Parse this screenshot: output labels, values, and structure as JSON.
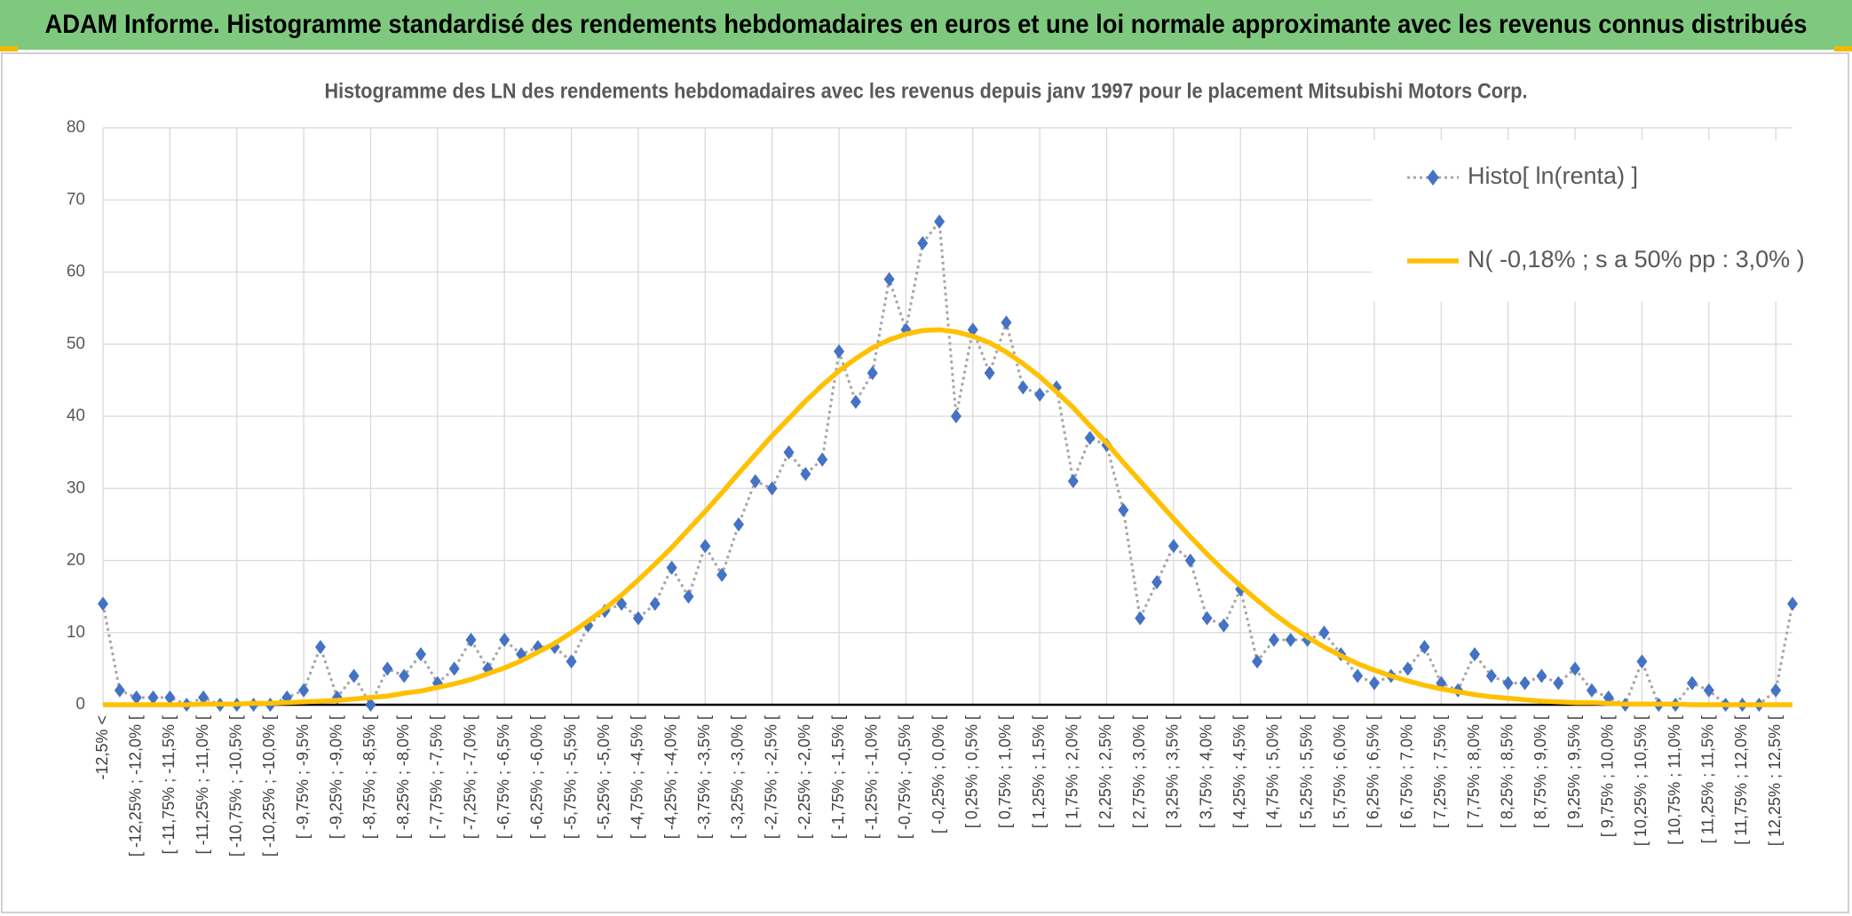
{
  "header": {
    "title": "ADAM Informe. Histogramme standardisé des rendements hebdomadaires en euros et une loi normale approximante avec les revenus connus distribués"
  },
  "chart_data": {
    "type": "line",
    "title": "Histogramme des LN des rendements hebdomadaires avec les revenus depuis janv 1997 pour le placement Mitsubishi Motors Corp.",
    "categories": [
      "-12,5% <",
      null,
      "[ -12,25% ; -12,0% [",
      null,
      "[ -11,75% ; -11,5% [",
      null,
      "[ -11,25% ; -11,0% [",
      null,
      "[ -10,75% ; -10,5% [",
      null,
      "[ -10,25% ; -10,0% [",
      null,
      "[ -9,75% ; -9,5% [",
      null,
      "[ -9,25% ; -9,0% [",
      null,
      "[ -8,75% ; -8,5% [",
      null,
      "[ -8,25% ; -8,0% [",
      null,
      "[ -7,75% ; -7,5% [",
      null,
      "[ -7,25% ; -7,0% [",
      null,
      "[ -6,75% ; -6,5% [",
      null,
      "[ -6,25% ; -6,0% [",
      null,
      "[ -5,75% ; -5,5% [",
      null,
      "[ -5,25% ; -5,0% [",
      null,
      "[ -4,75% ; -4,5% [",
      null,
      "[ -4,25% ; -4,0% [",
      null,
      "[ -3,75% ; -3,5% [",
      null,
      "[ -3,25% ; -3,0% [",
      null,
      "[ -2,75% ; -2,5% [",
      null,
      "[ -2,25% ; -2,0% [",
      null,
      "[ -1,75% ; -1,5% [",
      null,
      "[ -1,25% ; -1,0% [",
      null,
      "[ -0,75% ; -0,5% [",
      null,
      "[ -0,25% ; 0,0% [",
      null,
      "[ 0,25% ; 0,5% [",
      null,
      "[ 0,75% ; 1,0% [",
      null,
      "[ 1,25% ; 1,5% [",
      null,
      "[ 1,75% ; 2,0% [",
      null,
      "[ 2,25% ; 2,5% [",
      null,
      "[ 2,75% ; 3,0% [",
      null,
      "[ 3,25% ; 3,5% [",
      null,
      "[ 3,75% ; 4,0% [",
      null,
      "[ 4,25% ; 4,5% [",
      null,
      "[ 4,75% ; 5,0% [",
      null,
      "[ 5,25% ; 5,5% [",
      null,
      "[ 5,75% ; 6,0% [",
      null,
      "[ 6,25% ; 6,5% [",
      null,
      "[ 6,75% ; 7,0% [",
      null,
      "[ 7,25% ; 7,5% [",
      null,
      "[ 7,75% ; 8,0% [",
      null,
      "[ 8,25% ; 8,5% [",
      null,
      "[ 8,75% ; 9,0% [",
      null,
      "[ 9,25% ; 9,5% [",
      null,
      "[ 9,75% ; 10,0% [",
      null,
      "[ 10,25% ; 10,5% [",
      null,
      "[ 10,75% ; 11,0% [",
      null,
      "[ 11,25% ; 11,5% [",
      null,
      "[ 11,75% ; 12,0% [",
      null,
      "[ 12,25% ; 12,5% [",
      null
    ],
    "series": [
      {
        "name": "Histo[ ln(renta) ]",
        "color": "#4472c4",
        "line_color": "#a5a5a5",
        "line_style": "dotted",
        "marker": "diamond",
        "values": [
          14,
          2,
          1,
          1,
          1,
          0,
          1,
          0,
          0,
          0,
          0,
          1,
          2,
          8,
          1,
          4,
          0,
          5,
          4,
          7,
          3,
          5,
          9,
          5,
          9,
          7,
          8,
          8,
          6,
          11,
          13,
          14,
          12,
          14,
          19,
          15,
          22,
          18,
          25,
          31,
          30,
          35,
          32,
          34,
          49,
          42,
          46,
          59,
          52,
          64,
          67,
          40,
          52,
          46,
          53,
          44,
          43,
          44,
          31,
          37,
          36,
          27,
          12,
          17,
          22,
          20,
          12,
          11,
          16,
          6,
          9,
          9,
          9,
          10,
          7,
          4,
          3,
          4,
          5,
          8,
          3,
          2,
          7,
          4,
          3,
          3,
          4,
          3,
          5,
          2,
          1,
          0,
          6,
          0,
          0,
          3,
          2,
          0,
          0,
          0,
          2,
          14
        ]
      },
      {
        "name": "N( -0,18% ; s a 50% pp : 3,0% )",
        "color": "#ffc000",
        "line_style": "solid",
        "marker": "none",
        "values": [
          0,
          0,
          0,
          0,
          0,
          0,
          0.1,
          0.1,
          0.1,
          0.2,
          0.2,
          0.3,
          0.4,
          0.5,
          0.6,
          0.8,
          1.0,
          1.2,
          1.6,
          1.9,
          2.4,
          2.9,
          3.5,
          4.3,
          5.1,
          6.1,
          7.3,
          8.5,
          10.0,
          11.6,
          13.3,
          15.2,
          17.3,
          19.5,
          21.8,
          24.3,
          26.8,
          29.4,
          32.1,
          34.7,
          37.3,
          39.7,
          42.1,
          44.3,
          46.3,
          48.0,
          49.5,
          50.6,
          51.4,
          51.9,
          52.0,
          51.7,
          51.1,
          50.2,
          48.9,
          47.3,
          45.5,
          43.4,
          41.2,
          38.7,
          36.3,
          33.6,
          31.0,
          28.4,
          25.8,
          23.3,
          20.9,
          18.6,
          16.5,
          14.5,
          12.6,
          10.9,
          9.4,
          8.0,
          6.8,
          5.7,
          4.8,
          4.0,
          3.3,
          2.7,
          2.2,
          1.8,
          1.4,
          1.1,
          0.9,
          0.7,
          0.5,
          0.4,
          0.3,
          0.3,
          0.2,
          0.1,
          0.1,
          0.1,
          0.1,
          0,
          0,
          0,
          0,
          0,
          0,
          0
        ]
      }
    ],
    "ylim": [
      0,
      80
    ],
    "yticks": [
      0,
      10,
      20,
      30,
      40,
      50,
      60,
      70,
      80
    ],
    "grid": true,
    "legend": "upper right"
  }
}
